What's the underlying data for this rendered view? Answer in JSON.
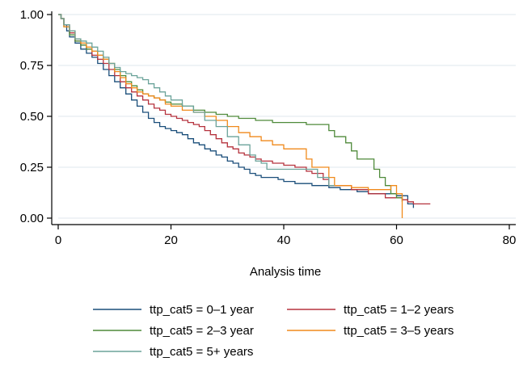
{
  "chart_data": {
    "type": "line",
    "step": true,
    "title": "",
    "xlabel": "Analysis time",
    "ylabel": "",
    "xlim": [
      0,
      80
    ],
    "ylim": [
      0,
      1
    ],
    "xticks": [
      0,
      20,
      40,
      60,
      80
    ],
    "yticks": [
      0.0,
      0.25,
      0.5,
      0.75,
      1.0
    ],
    "xtick_labels": [
      "0",
      "20",
      "40",
      "60",
      "80"
    ],
    "ytick_labels": [
      "0.00",
      "0.25",
      "0.50",
      "0.75",
      "1.00"
    ],
    "grid": "horizontal",
    "legend_position": "bottom",
    "series": [
      {
        "name": "ttp_cat5 = 0–1 year",
        "color": "#1a4e7a",
        "points": [
          [
            0,
            1.0
          ],
          [
            0.5,
            0.98
          ],
          [
            1,
            0.95
          ],
          [
            1.5,
            0.92
          ],
          [
            2,
            0.89
          ],
          [
            3,
            0.86
          ],
          [
            4,
            0.83
          ],
          [
            5,
            0.81
          ],
          [
            6,
            0.79
          ],
          [
            7,
            0.76
          ],
          [
            8,
            0.73
          ],
          [
            9,
            0.7
          ],
          [
            10,
            0.67
          ],
          [
            11,
            0.64
          ],
          [
            12,
            0.61
          ],
          [
            13,
            0.58
          ],
          [
            14,
            0.55
          ],
          [
            15,
            0.52
          ],
          [
            16,
            0.49
          ],
          [
            17,
            0.47
          ],
          [
            18,
            0.45
          ],
          [
            19,
            0.44
          ],
          [
            20,
            0.43
          ],
          [
            21,
            0.42
          ],
          [
            22,
            0.41
          ],
          [
            23,
            0.39
          ],
          [
            24,
            0.37
          ],
          [
            25,
            0.36
          ],
          [
            26,
            0.34
          ],
          [
            27,
            0.33
          ],
          [
            28,
            0.31
          ],
          [
            29,
            0.3
          ],
          [
            30,
            0.28
          ],
          [
            31,
            0.27
          ],
          [
            32,
            0.25
          ],
          [
            33,
            0.24
          ],
          [
            34,
            0.22
          ],
          [
            35,
            0.21
          ],
          [
            36,
            0.2
          ],
          [
            38,
            0.2
          ],
          [
            39,
            0.19
          ],
          [
            40,
            0.18
          ],
          [
            42,
            0.17
          ],
          [
            44,
            0.17
          ],
          [
            45,
            0.16
          ],
          [
            48,
            0.15
          ],
          [
            50,
            0.14
          ],
          [
            53,
            0.13
          ],
          [
            55,
            0.12
          ],
          [
            58,
            0.12
          ],
          [
            60,
            0.11
          ],
          [
            61,
            0.11
          ],
          [
            62,
            0.07
          ],
          [
            63,
            0.05
          ]
        ]
      },
      {
        "name": "ttp_cat5 = 1–2 years",
        "color": "#b5323d",
        "points": [
          [
            0,
            1.0
          ],
          [
            0.5,
            0.98
          ],
          [
            1,
            0.95
          ],
          [
            2,
            0.91
          ],
          [
            3,
            0.87
          ],
          [
            4,
            0.85
          ],
          [
            5,
            0.83
          ],
          [
            6,
            0.8
          ],
          [
            7,
            0.78
          ],
          [
            8,
            0.76
          ],
          [
            9,
            0.73
          ],
          [
            10,
            0.7
          ],
          [
            11,
            0.67
          ],
          [
            12,
            0.64
          ],
          [
            13,
            0.62
          ],
          [
            14,
            0.6
          ],
          [
            15,
            0.58
          ],
          [
            16,
            0.56
          ],
          [
            17,
            0.54
          ],
          [
            18,
            0.53
          ],
          [
            19,
            0.51
          ],
          [
            20,
            0.5
          ],
          [
            21,
            0.49
          ],
          [
            22,
            0.48
          ],
          [
            23,
            0.47
          ],
          [
            24,
            0.46
          ],
          [
            25,
            0.45
          ],
          [
            26,
            0.43
          ],
          [
            27,
            0.41
          ],
          [
            28,
            0.39
          ],
          [
            29,
            0.37
          ],
          [
            30,
            0.35
          ],
          [
            31,
            0.34
          ],
          [
            32,
            0.32
          ],
          [
            33,
            0.31
          ],
          [
            34,
            0.3
          ],
          [
            35,
            0.29
          ],
          [
            36,
            0.28
          ],
          [
            38,
            0.27
          ],
          [
            40,
            0.26
          ],
          [
            42,
            0.25
          ],
          [
            44,
            0.23
          ],
          [
            45,
            0.22
          ],
          [
            47,
            0.19
          ],
          [
            48,
            0.16
          ],
          [
            52,
            0.14
          ],
          [
            55,
            0.12
          ],
          [
            58,
            0.1
          ],
          [
            61,
            0.09
          ],
          [
            62,
            0.08
          ],
          [
            63,
            0.07
          ],
          [
            66,
            0.07
          ]
        ]
      },
      {
        "name": "ttp_cat5 = 2–3 year",
        "color": "#4f8a3a",
        "points": [
          [
            0,
            1.0
          ],
          [
            0.5,
            0.98
          ],
          [
            1,
            0.94
          ],
          [
            2,
            0.9
          ],
          [
            3,
            0.87
          ],
          [
            4,
            0.85
          ],
          [
            5,
            0.83
          ],
          [
            6,
            0.82
          ],
          [
            7,
            0.8
          ],
          [
            8,
            0.78
          ],
          [
            9,
            0.76
          ],
          [
            10,
            0.73
          ],
          [
            11,
            0.7
          ],
          [
            12,
            0.67
          ],
          [
            13,
            0.65
          ],
          [
            14,
            0.63
          ],
          [
            15,
            0.61
          ],
          [
            16,
            0.6
          ],
          [
            17,
            0.59
          ],
          [
            18,
            0.58
          ],
          [
            19,
            0.57
          ],
          [
            20,
            0.56
          ],
          [
            22,
            0.55
          ],
          [
            24,
            0.53
          ],
          [
            26,
            0.52
          ],
          [
            28,
            0.51
          ],
          [
            30,
            0.5
          ],
          [
            32,
            0.49
          ],
          [
            35,
            0.48
          ],
          [
            38,
            0.47
          ],
          [
            40,
            0.47
          ],
          [
            44,
            0.46
          ],
          [
            48,
            0.43
          ],
          [
            49,
            0.4
          ],
          [
            51,
            0.37
          ],
          [
            52,
            0.33
          ],
          [
            53,
            0.29
          ],
          [
            56,
            0.24
          ],
          [
            57,
            0.2
          ],
          [
            58,
            0.16
          ],
          [
            59,
            0.12
          ],
          [
            60,
            0.1
          ],
          [
            61,
            0.08
          ]
        ]
      },
      {
        "name": "ttp_cat5 = 3–5 years",
        "color": "#f08a1c",
        "points": [
          [
            0,
            1.0
          ],
          [
            0.5,
            0.98
          ],
          [
            1,
            0.94
          ],
          [
            2,
            0.92
          ],
          [
            3,
            0.88
          ],
          [
            4,
            0.86
          ],
          [
            5,
            0.84
          ],
          [
            6,
            0.82
          ],
          [
            7,
            0.8
          ],
          [
            8,
            0.78
          ],
          [
            9,
            0.76
          ],
          [
            10,
            0.72
          ],
          [
            11,
            0.69
          ],
          [
            12,
            0.66
          ],
          [
            13,
            0.64
          ],
          [
            14,
            0.62
          ],
          [
            15,
            0.61
          ],
          [
            16,
            0.6
          ],
          [
            17,
            0.59
          ],
          [
            18,
            0.58
          ],
          [
            19,
            0.56
          ],
          [
            20,
            0.55
          ],
          [
            22,
            0.53
          ],
          [
            24,
            0.52
          ],
          [
            26,
            0.5
          ],
          [
            28,
            0.48
          ],
          [
            30,
            0.45
          ],
          [
            32,
            0.42
          ],
          [
            34,
            0.4
          ],
          [
            36,
            0.38
          ],
          [
            38,
            0.36
          ],
          [
            40,
            0.34
          ],
          [
            44,
            0.29
          ],
          [
            45,
            0.25
          ],
          [
            48,
            0.2
          ],
          [
            49,
            0.16
          ],
          [
            52,
            0.15
          ],
          [
            55,
            0.14
          ],
          [
            59,
            0.16
          ],
          [
            60,
            0.12
          ],
          [
            61,
            0.02
          ],
          [
            61,
            0.0
          ]
        ]
      },
      {
        "name": "ttp_cat5 = 5+ years",
        "color": "#6ba39a",
        "points": [
          [
            0,
            1.0
          ],
          [
            0.5,
            0.98
          ],
          [
            1,
            0.95
          ],
          [
            2,
            0.92
          ],
          [
            3,
            0.88
          ],
          [
            4,
            0.87
          ],
          [
            5,
            0.86
          ],
          [
            6,
            0.84
          ],
          [
            7,
            0.82
          ],
          [
            8,
            0.79
          ],
          [
            9,
            0.76
          ],
          [
            10,
            0.74
          ],
          [
            11,
            0.72
          ],
          [
            12,
            0.71
          ],
          [
            13,
            0.7
          ],
          [
            14,
            0.69
          ],
          [
            15,
            0.68
          ],
          [
            16,
            0.66
          ],
          [
            17,
            0.64
          ],
          [
            18,
            0.62
          ],
          [
            19,
            0.6
          ],
          [
            20,
            0.58
          ],
          [
            22,
            0.55
          ],
          [
            24,
            0.52
          ],
          [
            26,
            0.48
          ],
          [
            28,
            0.45
          ],
          [
            30,
            0.4
          ],
          [
            32,
            0.36
          ],
          [
            34,
            0.31
          ],
          [
            35,
            0.28
          ],
          [
            36,
            0.27
          ],
          [
            37,
            0.24
          ],
          [
            40,
            0.24
          ],
          [
            45,
            0.24
          ],
          [
            46,
            0.2
          ],
          [
            48,
            0.16
          ],
          [
            49,
            0.16
          ]
        ]
      }
    ]
  }
}
